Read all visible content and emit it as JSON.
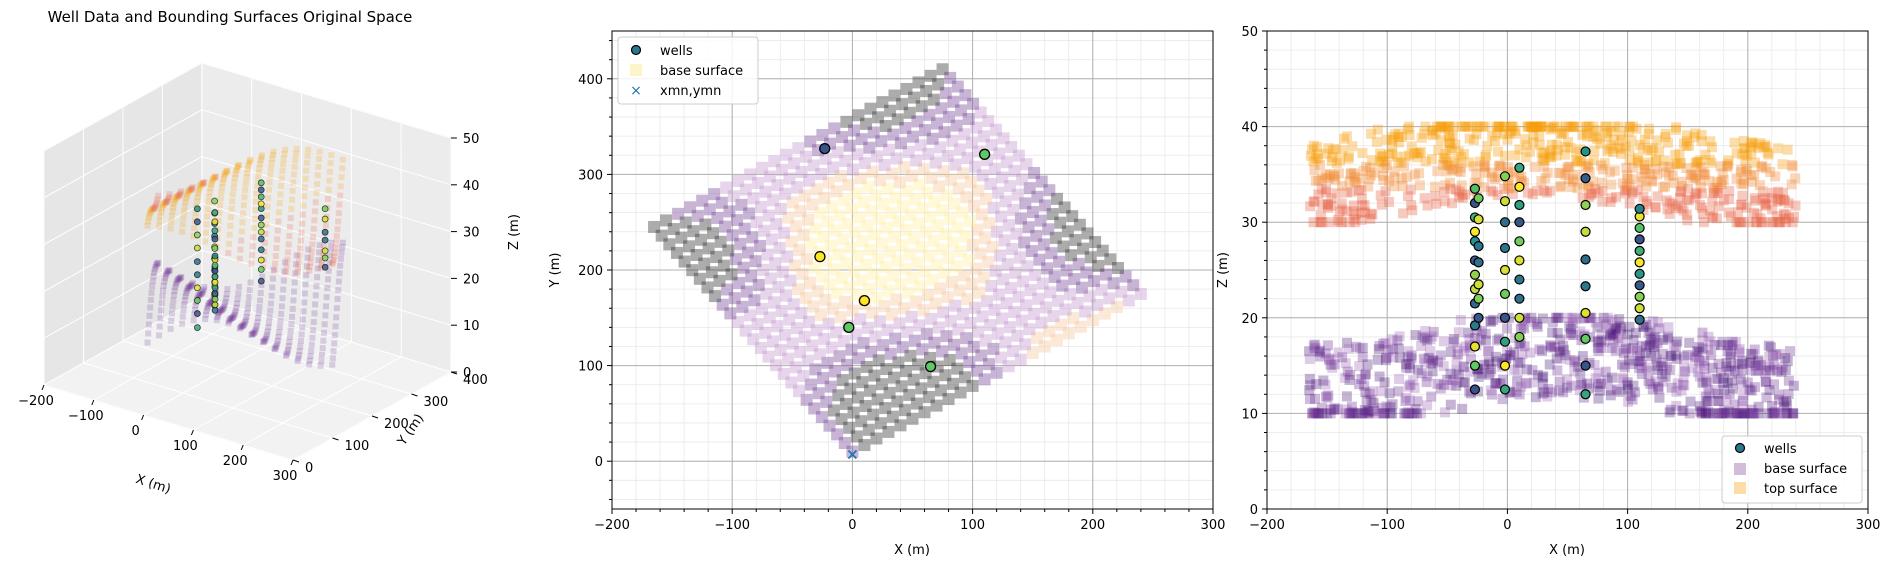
{
  "chart_data": [
    {
      "type": "scatter3d",
      "title": "Well Data and Bounding Surfaces Original Space",
      "xlabel": "X (m)",
      "ylabel": "Y (m)",
      "zlabel": "Z (m)",
      "xlim": [
        -200,
        300
      ],
      "ylim": [
        0,
        400
      ],
      "zlim": [
        0,
        50
      ],
      "xticks": [
        "−200",
        "−100",
        "0",
        "100",
        "200",
        "300"
      ],
      "yticks": [
        "0",
        "100",
        "200",
        "300",
        "400"
      ],
      "zticks": [
        "0",
        "10",
        "20",
        "30",
        "40",
        "50"
      ],
      "grid": true
    },
    {
      "type": "scatter",
      "xlabel": "X (m)",
      "ylabel": "Y (m)",
      "xlim": [
        -200,
        300
      ],
      "ylim": [
        -50,
        450
      ],
      "xticks": [
        "−200",
        "−100",
        "0",
        "100",
        "200",
        "300"
      ],
      "yticks": [
        "0",
        "100",
        "200",
        "300",
        "400"
      ],
      "grid": true,
      "minor_grid": true,
      "legend": {
        "placement": "top-left",
        "entries": [
          "wells",
          "base surface",
          "xmn,ymn"
        ]
      },
      "wells": [
        {
          "x": -23,
          "y": 327
        },
        {
          "x": 110,
          "y": 321
        },
        {
          "x": -27,
          "y": 214
        },
        {
          "x": 10,
          "y": 168
        },
        {
          "x": -3,
          "y": 140
        },
        {
          "x": 65,
          "y": 99
        }
      ],
      "origin": {
        "x": 0,
        "y": 7
      },
      "surface_grid": {
        "corner_left": [
          -165,
          245
        ],
        "corner_top": [
          75,
          410
        ],
        "corner_right": [
          240,
          175
        ],
        "corner_bottom": [
          0,
          10
        ]
      }
    },
    {
      "type": "scatter",
      "xlabel": "X (m)",
      "ylabel": "Z (m)",
      "xlim": [
        -200,
        300
      ],
      "ylim": [
        0,
        50
      ],
      "xticks": [
        "−200",
        "−100",
        "0",
        "100",
        "200",
        "300"
      ],
      "yticks": [
        "0",
        "10",
        "20",
        "30",
        "40",
        "50"
      ],
      "grid": true,
      "minor_grid": true,
      "legend": {
        "placement": "bottom-right",
        "entries": [
          "wells",
          "base surface",
          "top surface"
        ]
      },
      "well_columns": [
        {
          "x": -27,
          "z": [
            12.5,
            15,
            17,
            19.2,
            21.5,
            23,
            24.5,
            26,
            28,
            29,
            30.5,
            32,
            33.5
          ]
        },
        {
          "x": -24,
          "z": [
            20,
            22,
            23.5,
            25.8,
            27.5,
            30.3,
            32.5
          ]
        },
        {
          "x": -2,
          "z": [
            12.5,
            15,
            17.5,
            20,
            22.5,
            25,
            27.3,
            30,
            32.2,
            34.8
          ]
        },
        {
          "x": 10,
          "z": [
            18,
            20,
            22,
            24,
            26,
            28,
            30,
            31.8,
            33.7,
            35.7
          ]
        },
        {
          "x": 65,
          "z": [
            12,
            15,
            17.8,
            20.5,
            23.3,
            26.1,
            29,
            31.8,
            34.6,
            37.4
          ]
        },
        {
          "x": 110,
          "z": [
            19.8,
            21,
            22.2,
            23.4,
            24.6,
            25.8,
            27,
            28.2,
            29.4,
            30.6,
            31.4
          ]
        }
      ],
      "base_surface_zrange": [
        10,
        20
      ],
      "top_surface_zrange": [
        30,
        40
      ]
    }
  ]
}
